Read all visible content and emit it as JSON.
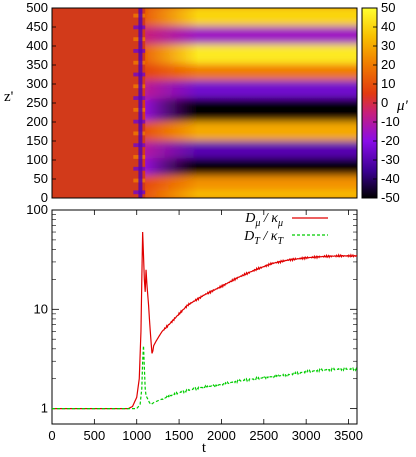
{
  "chart_data": [
    {
      "type": "heatmap",
      "title": "",
      "xlabel": "",
      "ylabel": "z'",
      "xlim": [
        0,
        3600
      ],
      "ylim": [
        0,
        500
      ],
      "y_ticks": [
        "0",
        "50",
        "100",
        "150",
        "200",
        "250",
        "300",
        "350",
        "400",
        "450",
        "500"
      ],
      "colorbar": {
        "label": "μ'",
        "range": [
          -50,
          50
        ],
        "ticks": [
          "50",
          "40",
          "30",
          "20",
          "10",
          "0",
          "-10",
          "-20",
          "-30",
          "-40",
          "-50"
        ],
        "colormap": [
          "#000000",
          "#3a0090",
          "#8a0ce8",
          "#c8207a",
          "#e23a10",
          "#f07a00",
          "#f8c000",
          "#ffff30"
        ]
      },
      "regions": [
        {
          "x": [
            0,
            900
          ],
          "z": [
            0,
            500
          ],
          "mu": 0
        },
        {
          "x": [
            900,
            1100
          ],
          "z": [
            0,
            500
          ],
          "mu": "stripes"
        },
        {
          "x": [
            1100,
            3600
          ],
          "z": [
            0,
            500
          ],
          "mu": "layers"
        }
      ],
      "layers": [
        {
          "z": 10,
          "mu": 35
        },
        {
          "z": 45,
          "mu": 25
        },
        {
          "z": 90,
          "mu": -50
        },
        {
          "z": 135,
          "mu": -30
        },
        {
          "z": 180,
          "mu": 30
        },
        {
          "z": 240,
          "mu": -50
        },
        {
          "z": 300,
          "mu": -25
        },
        {
          "z": 335,
          "mu": 20
        },
        {
          "z": 385,
          "mu": 45
        },
        {
          "z": 440,
          "mu": -15
        },
        {
          "z": 480,
          "mu": 40
        }
      ]
    },
    {
      "type": "line",
      "title": "",
      "xlabel": "t",
      "ylabel": "",
      "xlim": [
        0,
        3600
      ],
      "ylim": [
        0.7,
        100
      ],
      "yscale": "log",
      "x_ticks": [
        "0",
        "500",
        "1000",
        "1500",
        "2000",
        "2500",
        "3000",
        "3500"
      ],
      "y_ticks": [
        "1",
        "10",
        "100"
      ],
      "legend_position": "top-right",
      "legend": [
        {
          "label_main": "D",
          "label_sub": "μ",
          "label_div": " / κ",
          "label_sub2": "μ",
          "color": "#e00000"
        },
        {
          "label_main": "D",
          "label_sub": "T",
          "label_div": " / κ",
          "label_sub2": "T",
          "color": "#00cc00"
        }
      ],
      "series": [
        {
          "color": "#e00000",
          "style": "solid",
          "x": [
            0,
            900,
            950,
            1000,
            1030,
            1050,
            1060,
            1070,
            1080,
            1090,
            1100,
            1110,
            1120,
            1130,
            1140,
            1150,
            1160,
            1170,
            1180,
            1190,
            1200,
            1230,
            1260,
            1300,
            1400,
            1500,
            1600,
            1800,
            2000,
            2200,
            2400,
            2600,
            2800,
            3000,
            3200,
            3400,
            3600
          ],
          "y": [
            1,
            1,
            1.05,
            1.3,
            2,
            6,
            20,
            60,
            35,
            20,
            15,
            25,
            18,
            14,
            11,
            8,
            6,
            4.6,
            3.6,
            3.8,
            4.3,
            4.8,
            5.3,
            6.0,
            7.3,
            9.0,
            11,
            14,
            17,
            21,
            25,
            29,
            31.5,
            33,
            34,
            34.5,
            34.5
          ]
        },
        {
          "color": "#00cc00",
          "style": "dashed",
          "x": [
            0,
            1000,
            1040,
            1060,
            1070,
            1080,
            1090,
            1100,
            1110,
            1130,
            1150,
            1170,
            1200,
            1250,
            1300,
            1400,
            1500,
            1700,
            2000,
            2200,
            2500,
            2800,
            3000,
            3200,
            3400,
            3600
          ],
          "y": [
            1,
            1,
            1.1,
            1.6,
            3,
            4.3,
            2.6,
            1.6,
            1.35,
            1.25,
            1.15,
            1.1,
            1.15,
            1.2,
            1.25,
            1.35,
            1.45,
            1.6,
            1.75,
            1.9,
            2.05,
            2.2,
            2.35,
            2.45,
            2.5,
            2.5
          ]
        }
      ]
    }
  ]
}
